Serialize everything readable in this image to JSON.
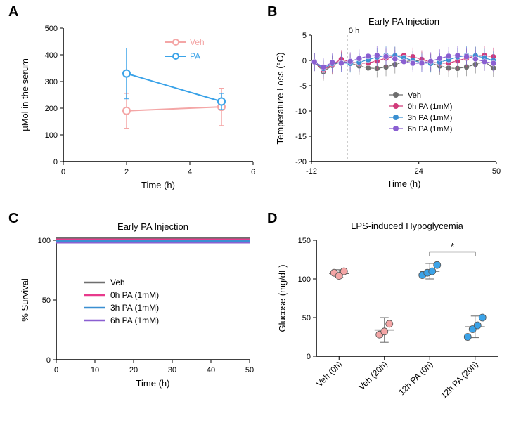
{
  "panelA": {
    "label": "A",
    "type": "line",
    "xlabel": "Time (h)",
    "ylabel": "µMol in the serum",
    "xlim": [
      0,
      6
    ],
    "ylim": [
      0,
      500
    ],
    "xticks": [
      0,
      2,
      4,
      6
    ],
    "yticks": [
      0,
      100,
      200,
      300,
      400,
      500
    ],
    "series": [
      {
        "name": "Veh",
        "color": "#f4a6a6",
        "points": [
          {
            "x": 2,
            "y": 190,
            "err": 65
          },
          {
            "x": 5,
            "y": 205,
            "err": 70
          }
        ]
      },
      {
        "name": "PA",
        "color": "#3ba3e8",
        "points": [
          {
            "x": 2,
            "y": 330,
            "err": 95
          },
          {
            "x": 5,
            "y": 225,
            "err": 30
          }
        ]
      }
    ],
    "axis_color": "#000000",
    "label_fontsize": 13,
    "tick_fontsize": 11,
    "marker_style": "open-circle",
    "marker_size": 5,
    "line_width": 2
  },
  "panelB": {
    "label": "B",
    "type": "scatter-line",
    "title": "Early PA Injection",
    "xlabel": "Time (h)",
    "ylabel": "Temperature Loss (°C)",
    "xlim": [
      -12,
      50
    ],
    "ylim": [
      -20,
      5
    ],
    "xticks": [
      -12,
      24,
      50
    ],
    "yticks": [
      -20,
      -15,
      -10,
      -5,
      0,
      5
    ],
    "vline_x": 0,
    "vline_label": "0 h",
    "series": [
      {
        "name": "Veh",
        "color": "#6e6e6e"
      },
      {
        "name": "0h PA (1mM)",
        "color": "#d13a7a"
      },
      {
        "name": "3h PA (1mM)",
        "color": "#3a8fd1"
      },
      {
        "name": "6h PA (1mM)",
        "color": "#8a5fd1"
      }
    ],
    "time_points": [
      -11,
      -8,
      -5,
      -2,
      1,
      4,
      7,
      10,
      13,
      16,
      19,
      22,
      25,
      28,
      31,
      34,
      37,
      40,
      43,
      46,
      49
    ],
    "axis_color": "#000000",
    "label_fontsize": 13,
    "tick_fontsize": 11,
    "title_fontsize": 13,
    "marker_size": 4,
    "line_width": 1.2,
    "err": 1.8
  },
  "panelC": {
    "label": "C",
    "type": "line",
    "title": "Early PA Injection",
    "xlabel": "Time (h)",
    "ylabel": "% Survival",
    "xlim": [
      0,
      50
    ],
    "ylim": [
      0,
      100
    ],
    "xticks": [
      0,
      10,
      20,
      30,
      40,
      50
    ],
    "yticks": [
      0,
      50,
      100
    ],
    "series": [
      {
        "name": "Veh",
        "color": "#6e6e6e",
        "y": 100
      },
      {
        "name": "0h PA (1mM)",
        "color": "#e83a8c",
        "y": 100
      },
      {
        "name": "3h PA (1mM)",
        "color": "#3a8fd1",
        "y": 100
      },
      {
        "name": "6h PA (1mM)",
        "color": "#8a5fd1",
        "y": 100
      }
    ],
    "axis_color": "#000000",
    "label_fontsize": 13,
    "tick_fontsize": 11,
    "title_fontsize": 13,
    "line_width": 2.5
  },
  "panelD": {
    "label": "D",
    "type": "scatter-bar",
    "title": "LPS-induced Hypoglycemia",
    "ylabel": "Glucose (mg/dL)",
    "ylim": [
      0,
      150
    ],
    "yticks": [
      0,
      50,
      100,
      150
    ],
    "categories": [
      "Veh (0h)",
      "Veh (20h)",
      "12h PA (0h)",
      "12h PA (20h)"
    ],
    "groups": [
      {
        "color": "#f4a6a6",
        "points": [
          108,
          104,
          110
        ],
        "mean": 107,
        "err": 5
      },
      {
        "color": "#f4a6a6",
        "points": [
          28,
          32,
          42
        ],
        "mean": 34,
        "err": 16
      },
      {
        "color": "#3ba3e8",
        "points": [
          105,
          108,
          110,
          118
        ],
        "mean": 110,
        "err": 10
      },
      {
        "color": "#3ba3e8",
        "points": [
          25,
          35,
          40,
          50
        ],
        "mean": 38,
        "err": 14
      }
    ],
    "sig": {
      "from": 2,
      "to": 3,
      "label": "*",
      "y": 135
    },
    "axis_color": "#000000",
    "label_fontsize": 13,
    "tick_fontsize": 11,
    "title_fontsize": 13,
    "marker_size": 5
  }
}
